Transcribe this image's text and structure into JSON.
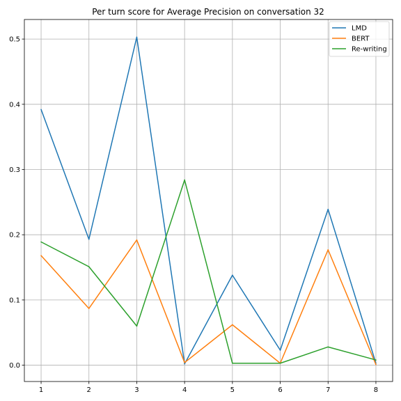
{
  "chart_data": {
    "type": "line",
    "title": "Per turn score for Average Precision on conversation 32",
    "xlabel": "",
    "ylabel": "",
    "x": [
      1,
      2,
      3,
      4,
      5,
      6,
      7,
      8
    ],
    "x_ticks": [
      "1",
      "2",
      "3",
      "4",
      "5",
      "6",
      "7",
      "8"
    ],
    "y_ticks": [
      "0.0",
      "0.1",
      "0.2",
      "0.3",
      "0.4",
      "0.5"
    ],
    "xlim": [
      0.65,
      8.35
    ],
    "ylim": [
      -0.025,
      0.53
    ],
    "grid": true,
    "legend_position": "top-right",
    "series": [
      {
        "name": "LMD",
        "color": "#1f77b4",
        "values": [
          0.392,
          0.193,
          0.503,
          0.002,
          0.138,
          0.023,
          0.239,
          0.003
        ]
      },
      {
        "name": "BERT",
        "color": "#ff7f0e",
        "values": [
          0.168,
          0.087,
          0.192,
          0.004,
          0.062,
          0.003,
          0.177,
          0.001
        ]
      },
      {
        "name": "Re-writing",
        "color": "#2ca02c",
        "values": [
          0.189,
          0.151,
          0.06,
          0.284,
          0.003,
          0.003,
          0.028,
          0.008
        ]
      }
    ]
  }
}
